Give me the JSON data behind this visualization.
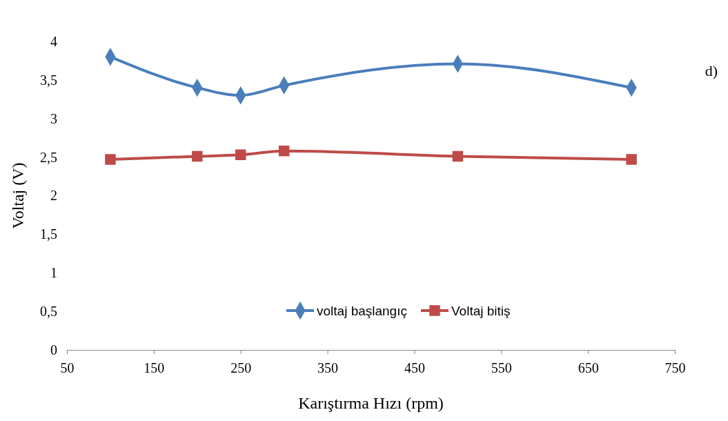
{
  "chart_data": {
    "type": "line",
    "xlabel": "Karıştırma Hızı (rpm)",
    "ylabel": "Voltaj (V)",
    "annotations": [
      "d)"
    ],
    "x": [
      100,
      200,
      250,
      300,
      500,
      700
    ],
    "series": [
      {
        "name": "voltaj başlangıç",
        "color": "#4a7ebb",
        "marker": "diamond",
        "values": [
          3.8,
          3.4,
          3.3,
          3.43,
          3.71,
          3.4
        ]
      },
      {
        "name": "Voltaj bitiş",
        "color": "#be4b48",
        "marker": "square",
        "values": [
          2.47,
          2.51,
          2.53,
          2.58,
          2.51,
          2.47
        ]
      }
    ],
    "xlim": [
      50,
      750
    ],
    "xticks": [
      50,
      150,
      250,
      350,
      450,
      550,
      650,
      750
    ],
    "ylim": [
      0,
      4
    ],
    "yticks": [
      0,
      {
        "value": 0.5,
        "label": "0,5"
      },
      1,
      {
        "value": 1.5,
        "label": "1,5"
      },
      2,
      {
        "value": 2.5,
        "label": "2,5"
      },
      3,
      {
        "value": 3.5,
        "label": "3,5"
      },
      4
    ],
    "grid": false,
    "legend": "bottom",
    "line_style": "solid"
  }
}
